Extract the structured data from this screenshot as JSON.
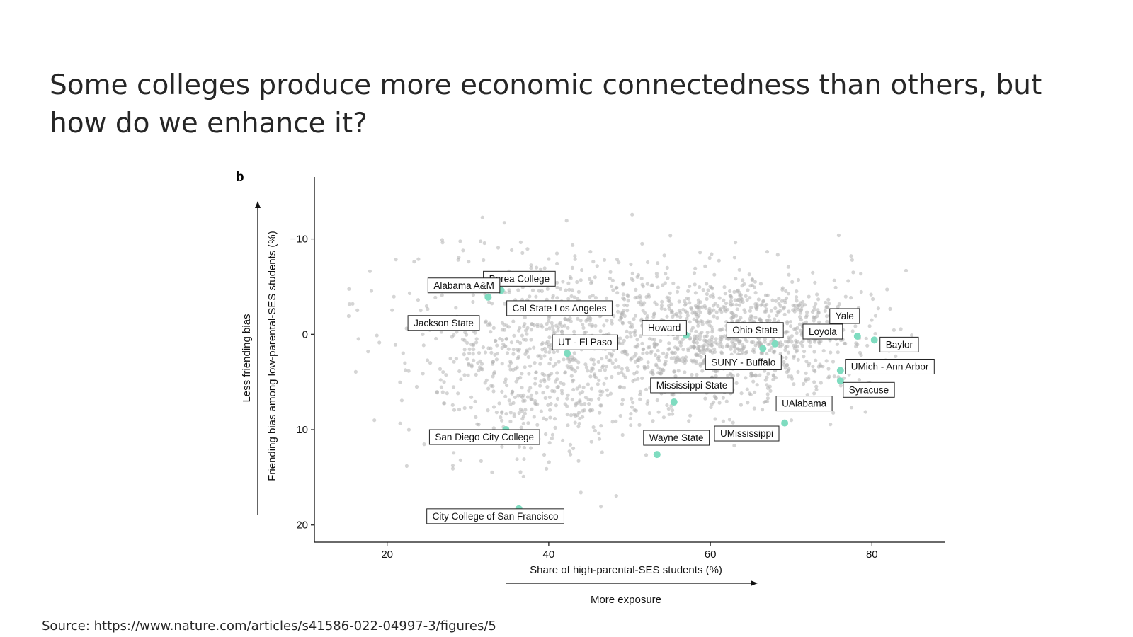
{
  "slide": {
    "title": "Some colleges produce more economic connectedness than others, but how do we enhance it?",
    "source": "Source: https://www.nature.com/articles/s41586-022-04997-3/figures/5"
  },
  "colors": {
    "background_point": "#b3b3b3",
    "highlight_point": "#7fdcc0",
    "text": "#262626"
  },
  "chart_data": {
    "type": "scatter",
    "panel_label": "b",
    "xlabel": "Share of high-parental-SES students (%)",
    "ylabel": "Friending bias among low-parental-SES students (%)",
    "x_arrow_label": "More exposure",
    "y_arrow_label": "Less friending bias",
    "xlim": [
      11,
      89
    ],
    "ylim": [
      -16.5,
      21.8
    ],
    "y_inverted": true,
    "x_ticks": [
      20,
      40,
      60,
      80
    ],
    "y_ticks": [
      -10,
      0,
      10,
      20
    ],
    "y_tick_labels": [
      "−10",
      "0",
      "10",
      "20"
    ],
    "grid": false,
    "series": [
      {
        "role": "highlighted colleges",
        "points": [
          {
            "label": "Berea College",
            "x": 34.1,
            "y": -4.6
          },
          {
            "label": "Alabama A&M",
            "x": 32.5,
            "y": -3.9
          },
          {
            "label": "Jackson State",
            "x": 29.5,
            "y": -1.3
          },
          {
            "label": "Cal State Los Angeles",
            "x": 39.1,
            "y": -2.7
          },
          {
            "label": "UT - El Paso",
            "x": 42.3,
            "y": 2.0
          },
          {
            "label": "Howard",
            "x": 57.0,
            "y": 0.1
          },
          {
            "label": "Ohio State",
            "x": 68.0,
            "y": 1.0
          },
          {
            "label": "SUNY - Buffalo",
            "x": 66.5,
            "y": 1.5
          },
          {
            "label": "Loyola",
            "x": 74.8,
            "y": 0.2
          },
          {
            "label": "Yale",
            "x": 78.2,
            "y": 0.2
          },
          {
            "label": "Baylor",
            "x": 80.3,
            "y": 0.6
          },
          {
            "label": "UMich - Ann Arbor",
            "x": 76.1,
            "y": 3.8
          },
          {
            "label": "Syracuse",
            "x": 76.1,
            "y": 4.9
          },
          {
            "label": "Mississippi State",
            "x": 55.5,
            "y": 7.1
          },
          {
            "label": "UAlabama",
            "x": 69.2,
            "y": 9.3
          },
          {
            "label": "UMississippi",
            "x": 65.6,
            "y": 10.0
          },
          {
            "label": "Wayne State",
            "x": 53.4,
            "y": 12.6
          },
          {
            "label": "San Diego City College",
            "x": 34.7,
            "y": 10.0
          },
          {
            "label": "City College of San Francisco",
            "x": 36.3,
            "y": 18.3
          }
        ]
      },
      {
        "role": "all colleges",
        "generated_cloud_note": "approximately 2,000 colleges shown as grey points",
        "clusters": [
          {
            "x_mean": 52,
            "x_sd": 14,
            "y_mean": 1,
            "y_sd": 4.5,
            "n": 900
          },
          {
            "x_mean": 65,
            "x_sd": 7,
            "y_mean": 0,
            "y_sd": 2.6,
            "n": 650
          },
          {
            "x_mean": 38,
            "x_sd": 7,
            "y_mean": 3,
            "y_sd": 5.5,
            "n": 450
          }
        ]
      }
    ]
  }
}
